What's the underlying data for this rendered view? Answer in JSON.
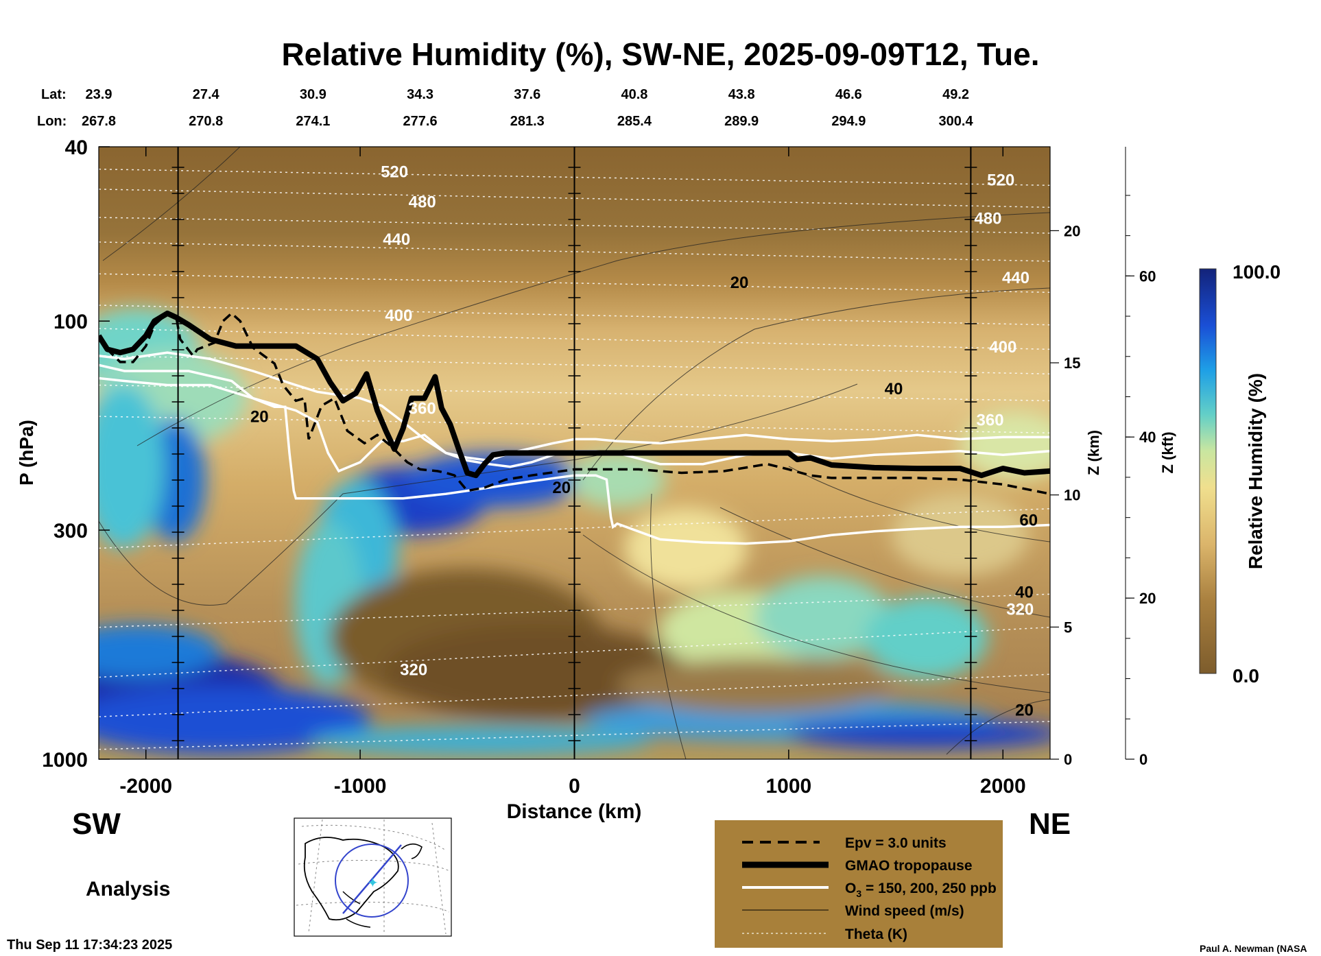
{
  "chart_data": {
    "type": "heatmap",
    "title": "Relative Humidity (%), SW-NE, 2025-09-09T12, Tue.",
    "xlabel": "Distance (km)",
    "ylabel": "P (hPa)",
    "z_km_label": "Z (km)",
    "z_kft_label": "Z (kft)",
    "colorbar_label": "Relative Humidity (%)",
    "colorbar_max": "100.0",
    "colorbar_min": "0.0",
    "xlim": [
      -2220,
      2220
    ],
    "ylim_hpa": [
      1000,
      40
    ],
    "y_scale": "log",
    "x_ticks": [
      "-2000",
      "-1000",
      "0",
      "1000",
      "2000"
    ],
    "x_tick_values": [
      -2000,
      -1000,
      0,
      1000,
      2000
    ],
    "y_ticks": [
      "40",
      "100",
      "300",
      "1000"
    ],
    "y_tick_values": [
      40,
      100,
      300,
      1000
    ],
    "z_km_ticks": [
      "0",
      "5",
      "10",
      "15",
      "20"
    ],
    "z_km_values": [
      0,
      5,
      10,
      15,
      20
    ],
    "z_kft_ticks": [
      "0",
      "20",
      "40",
      "60"
    ],
    "z_kft_values": [
      0,
      20,
      40,
      60
    ],
    "lat_label": "Lat:",
    "lon_label": "Lon:",
    "lat": [
      "23.9",
      "27.4",
      "30.9",
      "34.3",
      "37.6",
      "40.8",
      "43.8",
      "46.6",
      "49.2"
    ],
    "lon": [
      "267.8",
      "270.8",
      "274.1",
      "277.6",
      "281.3",
      "285.4",
      "289.9",
      "294.9",
      "300.4"
    ],
    "latlon_x": [
      -2220,
      -1720,
      -1220,
      -720,
      -220,
      280,
      780,
      1280,
      1780
    ],
    "vertical_lines_km": [
      -1850,
      0,
      1850
    ],
    "theta_labels": [
      {
        "text": "520",
        "x": -840,
        "p": 47
      },
      {
        "text": "480",
        "x": -710,
        "p": 55
      },
      {
        "text": "440",
        "x": -830,
        "p": 67
      },
      {
        "text": "400",
        "x": -820,
        "p": 100
      },
      {
        "text": "360",
        "x": -710,
        "p": 163
      },
      {
        "text": "320",
        "x": -750,
        "p": 643
      },
      {
        "text": "520",
        "x": 1990,
        "p": 49
      },
      {
        "text": "480",
        "x": 1930,
        "p": 60
      },
      {
        "text": "440",
        "x": 2060,
        "p": 82
      },
      {
        "text": "400",
        "x": 2000,
        "p": 118
      },
      {
        "text": "360",
        "x": 1940,
        "p": 173
      },
      {
        "text": "320",
        "x": 2080,
        "p": 468
      }
    ],
    "wind_labels": [
      {
        "text": "20",
        "x": 770,
        "p": 84
      },
      {
        "text": "40",
        "x": 1490,
        "p": 147
      },
      {
        "text": "20",
        "x": -1470,
        "p": 170
      },
      {
        "text": "20",
        "x": -60,
        "p": 247
      },
      {
        "text": "60",
        "x": 2120,
        "p": 293
      },
      {
        "text": "40",
        "x": 2100,
        "p": 428
      },
      {
        "text": "20",
        "x": 2100,
        "p": 795
      }
    ],
    "series": [
      {
        "name": "GMAO tropopause",
        "x": [
          -2220,
          -2180,
          -2120,
          -2060,
          -2000,
          -1960,
          -1900,
          -1860,
          -1800,
          -1700,
          -1580,
          -1450,
          -1300,
          -1200,
          -1140,
          -1080,
          -1020,
          -970,
          -920,
          -880,
          -840,
          -800,
          -760,
          -700,
          -650,
          -620,
          -580,
          -540,
          -500,
          -460,
          -420,
          -380,
          -320,
          -250,
          0,
          500,
          1000,
          1040,
          1100,
          1200,
          1400,
          1600,
          1800,
          1900,
          2000,
          2100,
          2220
        ],
        "p": [
          108,
          116,
          118,
          116,
          108,
          100,
          96,
          98,
          102,
          110,
          114,
          114,
          114,
          122,
          138,
          152,
          146,
          132,
          160,
          178,
          196,
          176,
          150,
          150,
          134,
          158,
          172,
          196,
          222,
          225,
          212,
          202,
          200,
          200,
          200,
          200,
          200,
          207,
          205,
          213,
          216,
          217,
          217,
          225,
          217,
          222,
          220
        ]
      },
      {
        "name": "Epv = 3.0 units",
        "x": [
          -2220,
          -2180,
          -2120,
          -2060,
          -2000,
          -1960,
          -1900,
          -1860,
          -1840,
          -1780,
          -1760,
          -1720,
          -1680,
          -1640,
          -1600,
          -1560,
          -1500,
          -1400,
          -1360,
          -1300,
          -1260,
          -1240,
          -1180,
          -1120,
          -1060,
          -980,
          -920,
          -860,
          -780,
          -720,
          -680,
          -640,
          -600,
          -560,
          -500,
          -420,
          -320,
          -200,
          0,
          300,
          500,
          700,
          900,
          1000,
          1100,
          1200,
          1400,
          1600,
          1800,
          2000,
          2220
        ],
        "p": [
          108,
          116,
          124,
          124,
          114,
          102,
          96,
          97,
          110,
          120,
          116,
          114,
          112,
          100,
          96,
          100,
          115,
          125,
          140,
          152,
          150,
          186,
          156,
          150,
          178,
          190,
          182,
          192,
          210,
          218,
          219,
          220,
          222,
          225,
          244,
          240,
          230,
          225,
          218,
          218,
          222,
          220,
          212,
          218,
          225,
          228,
          228,
          228,
          230,
          236,
          248
        ]
      },
      {
        "name": "O3 = 150, 200, 250 ppb",
        "lines": [
          {
            "x": [
              -2220,
              -2100,
              -1900,
              -1800,
              -1600,
              -1500,
              -1400,
              -1350,
              -1330,
              -1310,
              -1300,
              -1200,
              -1000,
              -900,
              -800,
              -600,
              -400,
              -200,
              0,
              100,
              150,
              170,
              180,
              200,
              400,
              600,
              800,
              1000,
              1200,
              1400,
              1600,
              1800,
              2000,
              2220
            ],
            "p": [
              126,
              130,
              130,
              130,
              137,
              150,
              157,
              157,
              200,
              244,
              254,
              254,
              254,
              254,
              254,
              248,
              240,
              232,
              225,
              225,
              230,
              280,
              295,
              290,
              315,
              320,
              322,
              318,
              308,
              302,
              298,
              295,
              295,
              292
            ]
          },
          {
            "x": [
              -2220,
              -2100,
              -1900,
              -1700,
              -1500,
              -1300,
              -1200,
              -1150,
              -1100,
              -1000,
              -900,
              -800,
              -700,
              -600,
              -500,
              -400,
              -300,
              -200,
              -100,
              0,
              100,
              200,
              400,
              600,
              800,
              1000,
              1200,
              1400,
              1600,
              1800,
              2000,
              2220
            ],
            "p": [
              135,
              137,
              140,
              140,
              150,
              160,
              170,
              200,
              220,
              210,
              188,
              188,
              182,
              200,
              208,
              212,
              215,
              210,
              202,
              198,
              198,
              200,
              212,
              212,
              202,
              200,
              206,
              202,
              200,
              198,
              202,
              198
            ]
          },
          {
            "x": [
              -2220,
              -2100,
              -1900,
              -1700,
              -1500,
              -1300,
              -1200,
              -1000,
              -900,
              -800,
              -700,
              -600,
              -500,
              -400,
              -300,
              -200,
              -100,
              0,
              100,
              200,
              400,
              600,
              800,
              1000,
              1200,
              1400,
              1600,
              1800,
              2000,
              2220
            ],
            "p": [
              120,
              122,
              118,
              122,
              130,
              140,
              145,
              150,
              156,
              170,
              186,
              200,
              205,
              208,
              200,
              195,
              190,
              186,
              186,
              188,
              190,
              186,
              182,
              186,
              188,
              186,
              182,
              186,
              184,
              184
            ]
          }
        ]
      }
    ],
    "legend": [
      "Epv = 3.0 units",
      "GMAO tropopause",
      "O",
      "3",
      " = 150, 200, 250 ppb",
      "Wind speed (m/s)",
      "Theta (K)"
    ],
    "legend_placement": "bottom-center",
    "direction_left": "SW",
    "direction_right": "NE",
    "product": "Analysis",
    "timestamp": "Thu Sep 11 17:34:23 2025",
    "credit": "Paul A. Newman (NASA"
  },
  "colors": {
    "tropopause": "#000000",
    "o3": "#ffffff",
    "legend_bg": "#a8803a",
    "rh_dry": "#7a5a2a",
    "rh_wet": "#1a2a9a"
  }
}
